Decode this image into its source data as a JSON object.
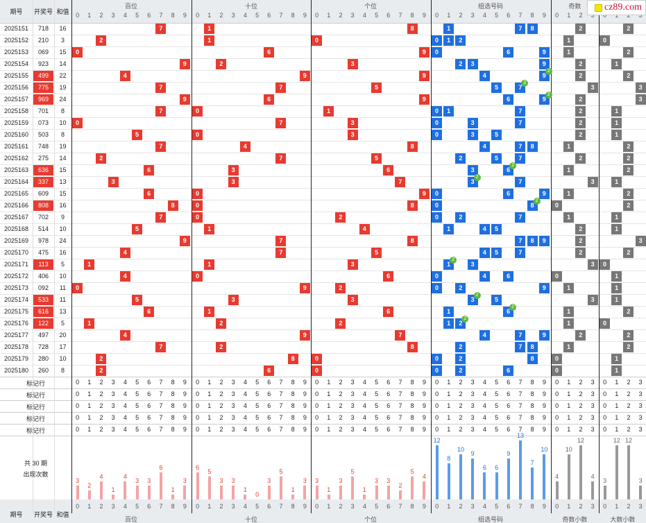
{
  "logo": {
    "text": "cz89.com"
  },
  "headers": {
    "col_period": "期号",
    "col_number": "开奖号",
    "col_sum": "和值",
    "groups": [
      "百位",
      "十位",
      "个位",
      "组选号码",
      "奇数小数",
      "大数小数"
    ],
    "groups_top": [
      "百位",
      "十位",
      "个位",
      "组选号码",
      "奇数",
      "大数小数"
    ]
  },
  "rows": [
    {
      "p": "2025151",
      "n": "718",
      "s": "16"
    },
    {
      "p": "2025152",
      "n": "210",
      "s": "3"
    },
    {
      "p": "2025153",
      "n": "069",
      "s": "15"
    },
    {
      "p": "2025154",
      "n": "923",
      "s": "14"
    },
    {
      "p": "2025155",
      "n": "499",
      "s": "22"
    },
    {
      "p": "2025156",
      "n": "775",
      "s": "19"
    },
    {
      "p": "2025157",
      "n": "969",
      "s": "24"
    },
    {
      "p": "2025158",
      "n": "701",
      "s": "8"
    },
    {
      "p": "2025159",
      "n": "073",
      "s": "10"
    },
    {
      "p": "2025160",
      "n": "503",
      "s": "8"
    },
    {
      "p": "2025161",
      "n": "748",
      "s": "19"
    },
    {
      "p": "2025162",
      "n": "275",
      "s": "14"
    },
    {
      "p": "2025163",
      "n": "636",
      "s": "15"
    },
    {
      "p": "2025164",
      "n": "337",
      "s": "13"
    },
    {
      "p": "2025165",
      "n": "609",
      "s": "15"
    },
    {
      "p": "2025166",
      "n": "808",
      "s": "16"
    },
    {
      "p": "2025167",
      "n": "702",
      "s": "9"
    },
    {
      "p": "2025168",
      "n": "514",
      "s": "10"
    },
    {
      "p": "2025169",
      "n": "978",
      "s": "24"
    },
    {
      "p": "2025170",
      "n": "475",
      "s": "16"
    },
    {
      "p": "2025171",
      "n": "113",
      "s": "5"
    },
    {
      "p": "2025172",
      "n": "406",
      "s": "10"
    },
    {
      "p": "2025173",
      "n": "092",
      "s": "11"
    },
    {
      "p": "2025174",
      "n": "533",
      "s": "11"
    },
    {
      "p": "2025175",
      "n": "616",
      "s": "13"
    },
    {
      "p": "2025176",
      "n": "122",
      "s": "5"
    },
    {
      "p": "2025177",
      "n": "497",
      "s": "20"
    },
    {
      "p": "2025178",
      "n": "728",
      "s": "17"
    },
    {
      "p": "2025179",
      "n": "280",
      "s": "10"
    },
    {
      "p": "2025180",
      "n": "260",
      "s": "8"
    }
  ],
  "highlighted_numbers": [
    "499",
    "775",
    "969",
    "636",
    "337",
    "808",
    "113",
    "533",
    "616",
    "122"
  ],
  "odd_small": [
    [
      2,
      "",
      2,
      ""
    ],
    [
      1,
      "",
      0,
      ""
    ],
    [
      1,
      "",
      2,
      ""
    ],
    [
      2,
      "",
      1,
      ""
    ],
    [
      2,
      "",
      2,
      ""
    ],
    [
      2,
      3,
      "",
      3
    ],
    [
      2,
      "",
      3,
      ""
    ],
    [
      2,
      "",
      1,
      ""
    ],
    [
      2,
      "",
      1,
      ""
    ],
    [
      2,
      "",
      1,
      ""
    ],
    [
      1,
      "",
      2,
      ""
    ],
    [
      2,
      "",
      2,
      ""
    ],
    [
      1,
      "",
      2,
      ""
    ],
    [
      2,
      3,
      1,
      ""
    ],
    [
      1,
      "",
      2,
      ""
    ],
    [
      0,
      "",
      2,
      ""
    ],
    [
      1,
      "",
      1,
      ""
    ],
    [
      2,
      "",
      1,
      ""
    ],
    [
      2,
      "",
      3,
      ""
    ],
    [
      2,
      "",
      2,
      ""
    ],
    [
      3,
      0,
      "",
      ""
    ],
    [
      0,
      "",
      1,
      ""
    ],
    [
      1,
      "",
      1,
      ""
    ],
    [
      3,
      "",
      1,
      ""
    ],
    [
      1,
      "",
      2,
      ""
    ],
    [
      1,
      0,
      "",
      ""
    ],
    [
      2,
      "",
      2,
      ""
    ],
    [
      1,
      "",
      2,
      ""
    ],
    [
      0,
      "",
      1,
      ""
    ],
    [
      0,
      "",
      1,
      ""
    ]
  ],
  "marker_label": "标记行",
  "marker_rows": 5,
  "digits": [
    "0",
    "1",
    "2",
    "3",
    "4",
    "5",
    "6",
    "7",
    "8",
    "9"
  ],
  "digits4": [
    "0",
    "1",
    "2",
    "3"
  ],
  "stats_label_line1": "共 30 期",
  "stats_label_line2": "出现次数",
  "chart_data": {
    "type": "bar",
    "title": "共 30 期 出现次数",
    "series": [
      {
        "name": "百位",
        "categories": [
          "0",
          "1",
          "2",
          "3",
          "4",
          "5",
          "6",
          "7",
          "8",
          "9"
        ],
        "values": [
          3,
          2,
          4,
          1,
          4,
          3,
          3,
          6,
          1,
          3
        ]
      },
      {
        "name": "十位",
        "categories": [
          "0",
          "1",
          "2",
          "3",
          "4",
          "5",
          "6",
          "7",
          "8",
          "9"
        ],
        "values": [
          6,
          5,
          3,
          3,
          1,
          0,
          3,
          5,
          1,
          3
        ]
      },
      {
        "name": "个位",
        "categories": [
          "0",
          "1",
          "2",
          "3",
          "4",
          "5",
          "6",
          "7",
          "8",
          "9"
        ],
        "values": [
          3,
          1,
          3,
          5,
          1,
          3,
          3,
          2,
          5,
          4
        ]
      },
      {
        "name": "组选号码",
        "categories": [
          "0",
          "1",
          "2",
          "3",
          "4",
          "5",
          "6",
          "7",
          "8",
          "9"
        ],
        "values": [
          12,
          8,
          10,
          9,
          6,
          6,
          9,
          13,
          7,
          10
        ]
      },
      {
        "name": "奇数小数",
        "categories": [
          "0",
          "1",
          "2",
          "3"
        ],
        "values": [
          4,
          10,
          12,
          4
        ]
      },
      {
        "name": "大数小数",
        "categories": [
          "0",
          "1",
          "2",
          "3"
        ],
        "values": [
          3,
          12,
          12,
          3
        ]
      }
    ]
  }
}
